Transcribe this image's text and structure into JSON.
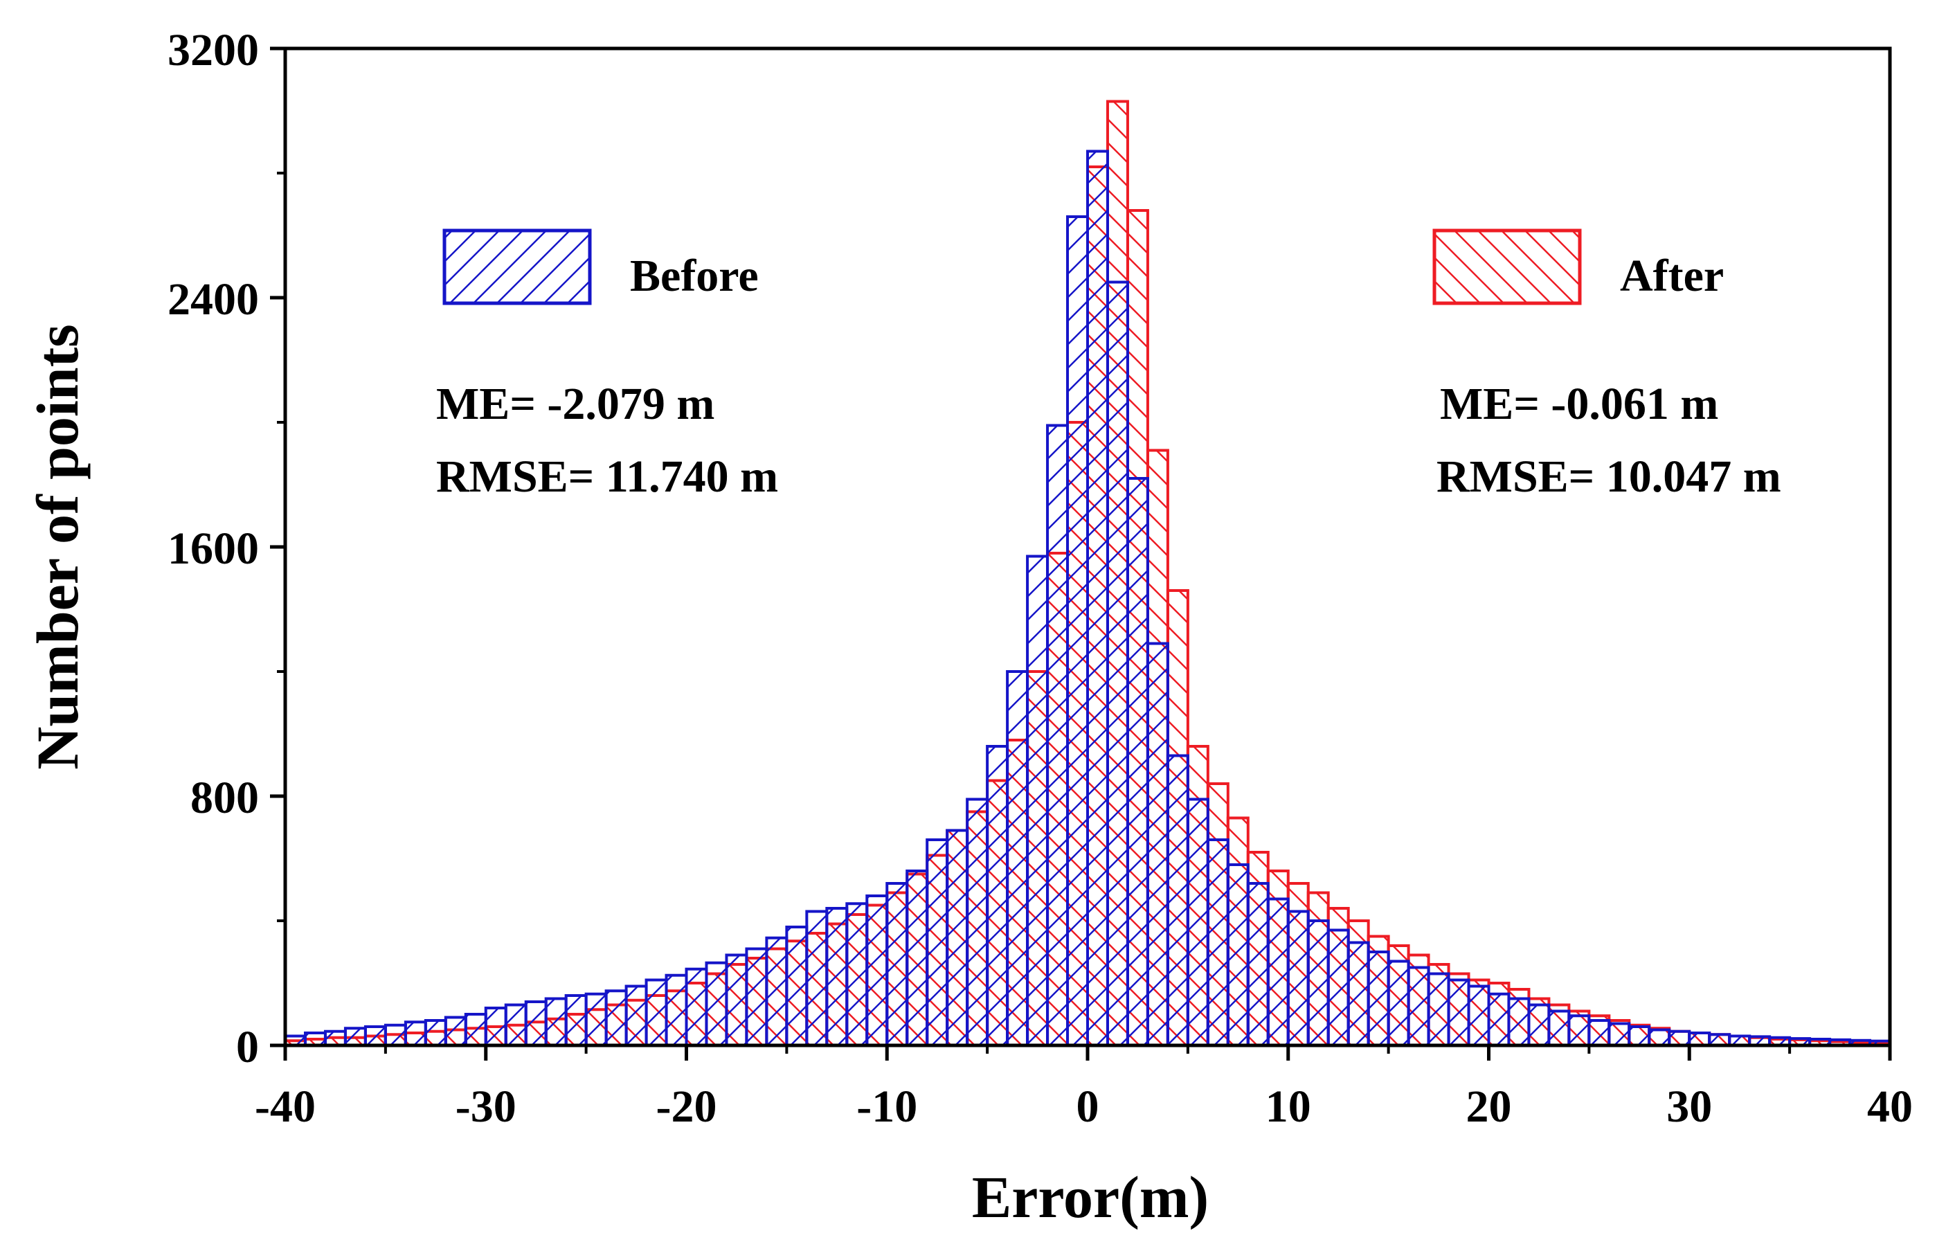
{
  "chart_data": {
    "type": "bar",
    "subtype": "overlaid-histogram",
    "title": "",
    "xlabel": "Error(m)",
    "ylabel": "Number of points",
    "xlim": [
      -40,
      40
    ],
    "ylim": [
      0,
      3200
    ],
    "bin_width": 1,
    "x_ticks": [
      "-40",
      "-30",
      "-20",
      "-10",
      "0",
      "10",
      "20",
      "30",
      "40"
    ],
    "y_ticks": [
      "0",
      "800",
      "1600",
      "2400",
      "3200"
    ],
    "colors": {
      "Before": "#1515c8",
      "After": "#ee1c24",
      "axis": "#000000"
    },
    "series": [
      {
        "name": "Before",
        "me": "ME= -2.079 m",
        "rmse": "RMSE= 11.740 m",
        "values": [
          30,
          40,
          45,
          55,
          60,
          65,
          75,
          80,
          90,
          100,
          120,
          130,
          140,
          150,
          160,
          165,
          175,
          190,
          210,
          225,
          245,
          265,
          290,
          310,
          345,
          380,
          430,
          440,
          455,
          480,
          520,
          560,
          660,
          690,
          790,
          960,
          1200,
          1570,
          1990,
          2660,
          2870,
          2450,
          1820,
          1290,
          930,
          790,
          660,
          580,
          520,
          470,
          430,
          400,
          370,
          330,
          300,
          270,
          250,
          230,
          210,
          190,
          165,
          150,
          130,
          110,
          95,
          80,
          70,
          60,
          50,
          45,
          40,
          35,
          30,
          28,
          25,
          22,
          20,
          18,
          16,
          14
        ]
      },
      {
        "name": "After",
        "me": "ME= -0.061 m",
        "rmse": "RMSE= 10.047 m",
        "values": [
          15,
          20,
          25,
          25,
          30,
          35,
          40,
          45,
          50,
          55,
          60,
          65,
          75,
          85,
          100,
          115,
          130,
          145,
          160,
          175,
          200,
          230,
          260,
          280,
          310,
          335,
          360,
          390,
          420,
          450,
          490,
          550,
          610,
          690,
          750,
          850,
          980,
          1200,
          1580,
          2000,
          2820,
          3030,
          2680,
          1910,
          1460,
          960,
          840,
          730,
          620,
          560,
          520,
          490,
          440,
          400,
          350,
          320,
          290,
          260,
          230,
          210,
          200,
          180,
          150,
          130,
          110,
          95,
          80,
          65,
          55,
          45,
          40,
          35,
          30,
          25,
          20,
          18,
          15,
          12,
          10,
          8
        ]
      }
    ]
  }
}
